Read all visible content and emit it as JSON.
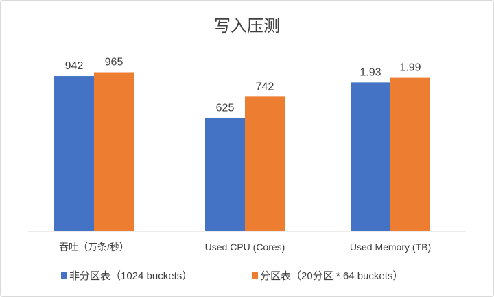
{
  "chart_data": {
    "type": "bar",
    "title": "写入压测",
    "grid": false,
    "legend_position": "bottom",
    "categories": [
      "吞吐（万条/秒）",
      "Used CPU (Cores)",
      "Used Memory (TB)"
    ],
    "series": [
      {
        "name": "非分区表（1024 buckets）",
        "color": "#4472c4",
        "values": [
          942,
          625,
          1.93
        ],
        "labels": [
          "942",
          "625",
          "1.93"
        ]
      },
      {
        "name": "分区表（20分区 * 64 buckets）",
        "color": "#ed7d31",
        "values": [
          965,
          742,
          1.99
        ],
        "labels": [
          "965",
          "742",
          "1.99"
        ]
      }
    ],
    "group_max": [
      1100,
      1000,
      2.35
    ]
  }
}
